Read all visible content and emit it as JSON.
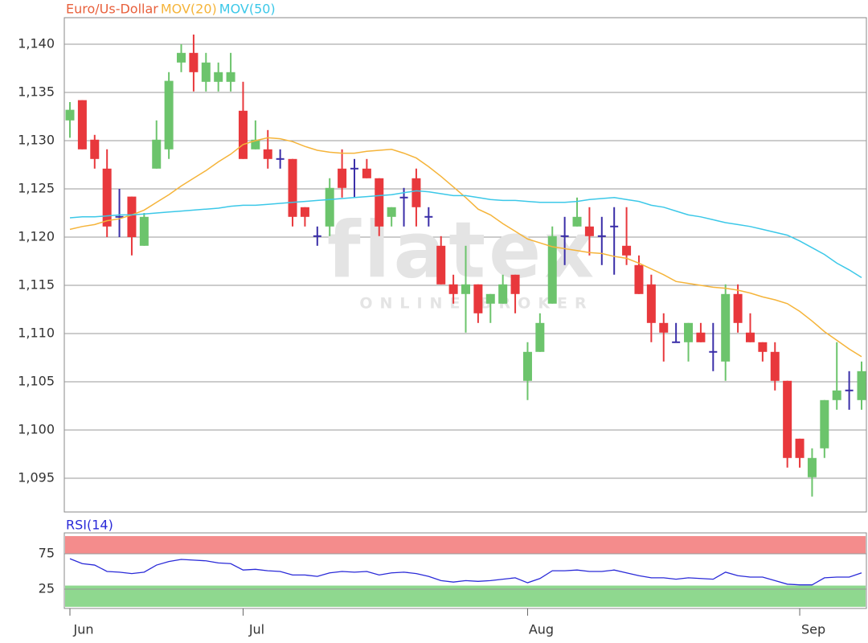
{
  "chart_data": [
    {
      "type": "candlestick",
      "categories": [
        "Jun",
        null,
        null,
        null,
        null,
        null,
        null,
        null,
        null,
        null,
        null,
        null,
        null,
        null,
        "Jul",
        null,
        null,
        null,
        null,
        null,
        null,
        null,
        null,
        null,
        null,
        null,
        null,
        null,
        null,
        null,
        null,
        null,
        null,
        null,
        null,
        null,
        null,
        "Aug",
        null,
        null,
        null,
        null,
        null,
        null,
        null,
        null,
        null,
        null,
        null,
        null,
        null,
        null,
        null,
        null,
        null,
        null,
        null,
        null,
        null,
        "Sep",
        null,
        null,
        null,
        null,
        null
      ],
      "ylim": [
        1.0915,
        1.14275
      ],
      "yticks": [
        {
          "value": 1.095,
          "label": "1,095"
        },
        {
          "value": 1.1,
          "label": "1,100"
        },
        {
          "value": 1.105,
          "label": "1,105"
        },
        {
          "value": 1.11,
          "label": "1,110"
        },
        {
          "value": 1.115,
          "label": "1,115"
        },
        {
          "value": 1.12,
          "label": "1,120"
        },
        {
          "value": 1.125,
          "label": "1,125"
        },
        {
          "value": 1.13,
          "label": "1,130"
        },
        {
          "value": 1.135,
          "label": "1,135"
        },
        {
          "value": 1.14,
          "label": "1,140"
        }
      ],
      "grid": true,
      "up_color": "#6cc46c",
      "down_color": "#e8383c",
      "flat_color": "#3a2ea8",
      "watermark": {
        "logo": "flatex",
        "tagline": "ONLINE BROKER"
      },
      "series": [
        {
          "name": "Euro/Us-Dollar",
          "color": "#e8603c",
          "open": [
            1.1321,
            1.1342,
            1.1301,
            1.1271,
            1.1221,
            1.1242,
            1.1191,
            1.1271,
            1.1291,
            1.1381,
            1.1391,
            1.1361,
            1.1361,
            1.1361,
            1.1331,
            1.1291,
            1.1291,
            1.1281,
            1.1281,
            1.1231,
            1.1201,
            1.1211,
            1.1271,
            1.1271,
            1.1271,
            1.1261,
            1.1221,
            1.1241,
            1.1261,
            1.1221,
            1.1191,
            1.1151,
            1.1141,
            1.1151,
            1.1131,
            1.1131,
            1.1161,
            1.1051,
            1.1081,
            1.1131,
            1.1201,
            1.1211,
            1.1211,
            1.1201,
            1.1211,
            1.1191,
            1.1171,
            1.1151,
            1.1111,
            1.1091,
            1.1091,
            1.1101,
            1.1081,
            1.1071,
            1.1141,
            1.1101,
            1.1091,
            1.1081,
            1.1051,
            1.0991,
            1.0951,
            1.0981,
            1.1031,
            1.1041,
            1.1031
          ],
          "high": [
            1.134,
            1.1342,
            1.1306,
            1.1291,
            1.125,
            1.1242,
            1.1225,
            1.1321,
            1.1371,
            1.14,
            1.141,
            1.1391,
            1.1381,
            1.1391,
            1.1361,
            1.1321,
            1.1311,
            1.1291,
            1.1281,
            1.1231,
            1.1211,
            1.1261,
            1.1291,
            1.1281,
            1.1281,
            1.1261,
            1.1231,
            1.1251,
            1.1271,
            1.1231,
            1.1201,
            1.1161,
            1.1191,
            1.1151,
            1.1141,
            1.1161,
            1.1161,
            1.1091,
            1.1121,
            1.1211,
            1.1221,
            1.1241,
            1.1231,
            1.1221,
            1.1231,
            1.1231,
            1.1181,
            1.1161,
            1.1121,
            1.1111,
            1.1111,
            1.1111,
            1.1111,
            1.1151,
            1.1151,
            1.1121,
            1.1091,
            1.1091,
            1.1051,
            1.0991,
            1.0981,
            1.1031,
            1.1091,
            1.1061,
            1.1071
          ],
          "low": [
            1.1303,
            1.1291,
            1.1271,
            1.12,
            1.12,
            1.1181,
            1.1191,
            1.1271,
            1.1281,
            1.1371,
            1.1351,
            1.1351,
            1.1351,
            1.1351,
            1.1281,
            1.1291,
            1.1271,
            1.1271,
            1.1211,
            1.1211,
            1.1191,
            1.1201,
            1.1241,
            1.1241,
            1.1261,
            1.1201,
            1.1211,
            1.1211,
            1.1211,
            1.1211,
            1.1151,
            1.1131,
            1.1101,
            1.1111,
            1.1111,
            1.1131,
            1.1121,
            1.1031,
            1.1081,
            1.1131,
            1.1171,
            1.1211,
            1.1181,
            1.1171,
            1.1161,
            1.1171,
            1.1141,
            1.1091,
            1.1071,
            1.1091,
            1.1071,
            1.1091,
            1.1061,
            1.1051,
            1.1101,
            1.1091,
            1.1071,
            1.1041,
            1.0961,
            1.0961,
            1.0931,
            1.0971,
            1.1021,
            1.1021,
            1.1021
          ],
          "close": [
            1.1332,
            1.1291,
            1.1281,
            1.1211,
            1.1221,
            1.12,
            1.1221,
            1.1301,
            1.1362,
            1.1391,
            1.1371,
            1.1381,
            1.1371,
            1.1371,
            1.1281,
            1.1301,
            1.1281,
            1.1281,
            1.1221,
            1.1221,
            1.1201,
            1.1251,
            1.1251,
            1.1271,
            1.1261,
            1.1211,
            1.1231,
            1.1241,
            1.1231,
            1.1221,
            1.1151,
            1.1141,
            1.1151,
            1.1121,
            1.1141,
            1.1151,
            1.1141,
            1.1081,
            1.1111,
            1.1201,
            1.1201,
            1.1221,
            1.1201,
            1.1201,
            1.1211,
            1.1181,
            1.1141,
            1.1111,
            1.1101,
            1.1091,
            1.1111,
            1.1091,
            1.1081,
            1.1141,
            1.1111,
            1.1091,
            1.1081,
            1.1051,
            1.0971,
            1.0971,
            1.0971,
            1.1031,
            1.1041,
            1.1041,
            1.1061
          ]
        },
        {
          "name": "MOV(20)",
          "color": "#f5b43a",
          "values": [
            1.1208,
            1.1211,
            1.1213,
            1.1217,
            1.1219,
            1.1223,
            1.1228,
            1.1236,
            1.1244,
            1.1253,
            1.1261,
            1.1269,
            1.1278,
            1.1286,
            1.1296,
            1.13,
            1.1303,
            1.1302,
            1.1299,
            1.1294,
            1.129,
            1.1288,
            1.1287,
            1.1287,
            1.1289,
            1.129,
            1.1291,
            1.1287,
            1.1282,
            1.1273,
            1.1263,
            1.1252,
            1.1241,
            1.1229,
            1.1223,
            1.1214,
            1.1206,
            1.1198,
            1.1194,
            1.119,
            1.1188,
            1.1186,
            1.1184,
            1.1183,
            1.118,
            1.1178,
            1.1173,
            1.1167,
            1.1161,
            1.1154,
            1.1152,
            1.115,
            1.1148,
            1.1147,
            1.1145,
            1.1142,
            1.1138,
            1.1135,
            1.1131,
            1.1123,
            1.1113,
            1.1102,
            1.1093,
            1.1084,
            1.1076
          ]
        },
        {
          "name": "MOV(50)",
          "color": "#3cc8e8",
          "values": [
            1.122,
            1.1221,
            1.1221,
            1.1222,
            1.1223,
            1.1223,
            1.1224,
            1.1225,
            1.1226,
            1.1227,
            1.1228,
            1.1229,
            1.123,
            1.1232,
            1.1233,
            1.1233,
            1.1234,
            1.1235,
            1.1236,
            1.1237,
            1.1238,
            1.1239,
            1.124,
            1.1241,
            1.1242,
            1.1243,
            1.1244,
            1.1246,
            1.1248,
            1.1247,
            1.1245,
            1.1243,
            1.1243,
            1.1241,
            1.1239,
            1.1238,
            1.1238,
            1.1237,
            1.1236,
            1.1236,
            1.1236,
            1.1237,
            1.1239,
            1.124,
            1.1241,
            1.1239,
            1.1237,
            1.1233,
            1.1231,
            1.1227,
            1.1223,
            1.1221,
            1.1218,
            1.1215,
            1.1213,
            1.1211,
            1.1208,
            1.1205,
            1.1202,
            1.1196,
            1.1189,
            1.1182,
            1.1173,
            1.1166,
            1.1158
          ]
        }
      ]
    },
    {
      "type": "line",
      "title": "RSI(14)",
      "ylim": [
        -2.3,
        104.5
      ],
      "yticks": [
        25,
        75
      ],
      "grid": true,
      "bands": [
        {
          "from": 75,
          "to": 100,
          "color": "#f48c8c"
        },
        {
          "from": 0,
          "to": 30,
          "color": "#8fd88f"
        }
      ],
      "series": [
        {
          "name": "RSI(14)",
          "color": "#2a2ad8",
          "values": [
            68,
            61,
            59,
            50,
            49,
            47,
            49,
            59,
            64,
            67,
            66,
            65,
            62,
            61,
            52,
            53,
            51,
            50,
            45,
            45,
            43,
            48,
            50,
            49,
            50,
            45,
            48,
            49,
            47,
            43,
            37,
            35,
            37,
            36,
            37,
            39,
            41,
            34,
            40,
            51,
            51,
            52,
            50,
            50,
            52,
            48,
            44,
            41,
            41,
            39,
            41,
            40,
            39,
            49,
            44,
            42,
            42,
            37,
            32,
            31,
            31,
            41,
            42,
            42,
            48
          ]
        }
      ]
    }
  ]
}
